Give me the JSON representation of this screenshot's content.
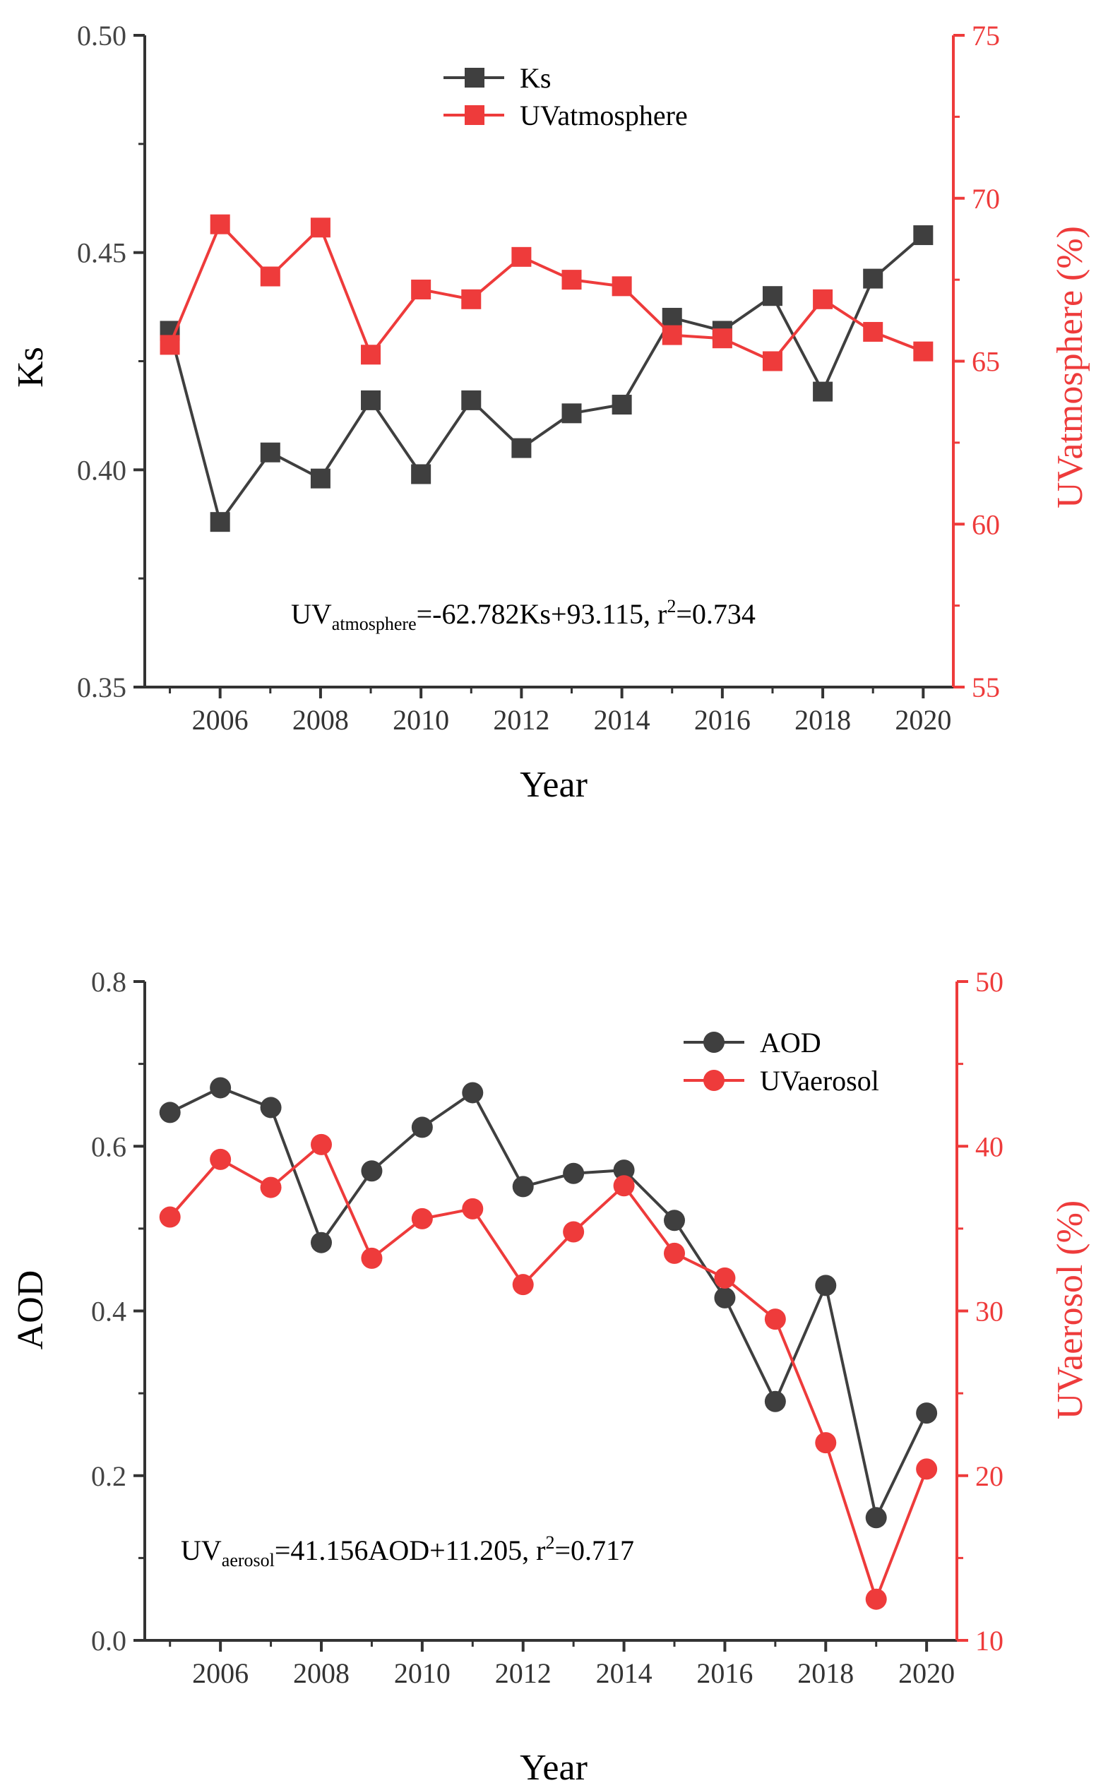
{
  "colors": {
    "left_series": "#3f3f3f",
    "right_series": "#ee3b3b",
    "axis": "#333333"
  },
  "chart_data": [
    {
      "type": "line",
      "marker": "square",
      "x": [
        2005,
        2006,
        2007,
        2008,
        2009,
        2010,
        2011,
        2012,
        2013,
        2014,
        2015,
        2016,
        2017,
        2018,
        2019,
        2020
      ],
      "xlim": [
        2004.5,
        2020.6
      ],
      "xticks": [
        "2006",
        "2008",
        "2010",
        "2012",
        "2014",
        "2016",
        "2018",
        "2020"
      ],
      "xlabel": "Year",
      "ylabel": "Ks",
      "ylim": [
        0.35,
        0.5
      ],
      "yticks": [
        "0.35",
        "0.40",
        "0.45",
        "0.50"
      ],
      "y2label": "UVatmosphere (%)",
      "y2lim": [
        55,
        75
      ],
      "y2ticks": [
        "55",
        "60",
        "65",
        "70",
        "75"
      ],
      "series": [
        {
          "name": "Ks",
          "axis": "left",
          "color": "#3f3f3f",
          "values": [
            0.432,
            0.388,
            0.404,
            0.398,
            0.416,
            0.399,
            0.416,
            0.405,
            0.413,
            0.415,
            0.435,
            0.432,
            0.44,
            0.418,
            0.444,
            0.454
          ]
        },
        {
          "name": "UVatmosphere",
          "axis": "right",
          "color": "#ee3b3b",
          "values": [
            65.5,
            69.2,
            67.6,
            69.1,
            65.2,
            67.2,
            66.9,
            68.2,
            67.5,
            67.3,
            65.8,
            65.7,
            65.0,
            66.9,
            65.9,
            65.3
          ]
        }
      ],
      "legend_position": "top-center",
      "annotation": {
        "prefix": "UV",
        "sub": "atmosphere",
        "mid": "=-62.782Ks+93.115, r",
        "sup": "2",
        "suffix": "=0.734"
      }
    },
    {
      "type": "line",
      "marker": "circle",
      "x": [
        2005,
        2006,
        2007,
        2008,
        2009,
        2010,
        2011,
        2012,
        2013,
        2014,
        2015,
        2016,
        2017,
        2018,
        2019,
        2020
      ],
      "xlim": [
        2004.5,
        2020.6
      ],
      "xticks": [
        "2006",
        "2008",
        "2010",
        "2012",
        "2014",
        "2016",
        "2018",
        "2020"
      ],
      "xlabel": "Year",
      "ylabel": "AOD",
      "ylim": [
        0.0,
        0.8
      ],
      "yticks": [
        "0.0",
        "0.2",
        "0.4",
        "0.6",
        "0.8"
      ],
      "y2label": "UVaerosol (%)",
      "y2lim": [
        10,
        50
      ],
      "y2ticks": [
        "10",
        "20",
        "30",
        "40",
        "50"
      ],
      "series": [
        {
          "name": "AOD",
          "axis": "left",
          "color": "#3f3f3f",
          "values": [
            0.641,
            0.671,
            0.647,
            0.483,
            0.57,
            0.623,
            0.665,
            0.551,
            0.567,
            0.571,
            0.51,
            0.416,
            0.29,
            0.431,
            0.149,
            0.276
          ]
        },
        {
          "name": "UVaerosol",
          "axis": "right",
          "color": "#ee3b3b",
          "values": [
            35.7,
            39.2,
            37.5,
            40.1,
            33.2,
            35.6,
            36.2,
            31.6,
            34.8,
            37.6,
            33.5,
            32.0,
            29.5,
            22.0,
            12.5,
            20.4
          ]
        }
      ],
      "legend_position": "top-right",
      "annotation": {
        "prefix": "UV",
        "sub": "aerosol",
        "mid": "=41.156AOD+11.205, r",
        "sup": "2",
        "suffix": "=0.717"
      }
    }
  ]
}
